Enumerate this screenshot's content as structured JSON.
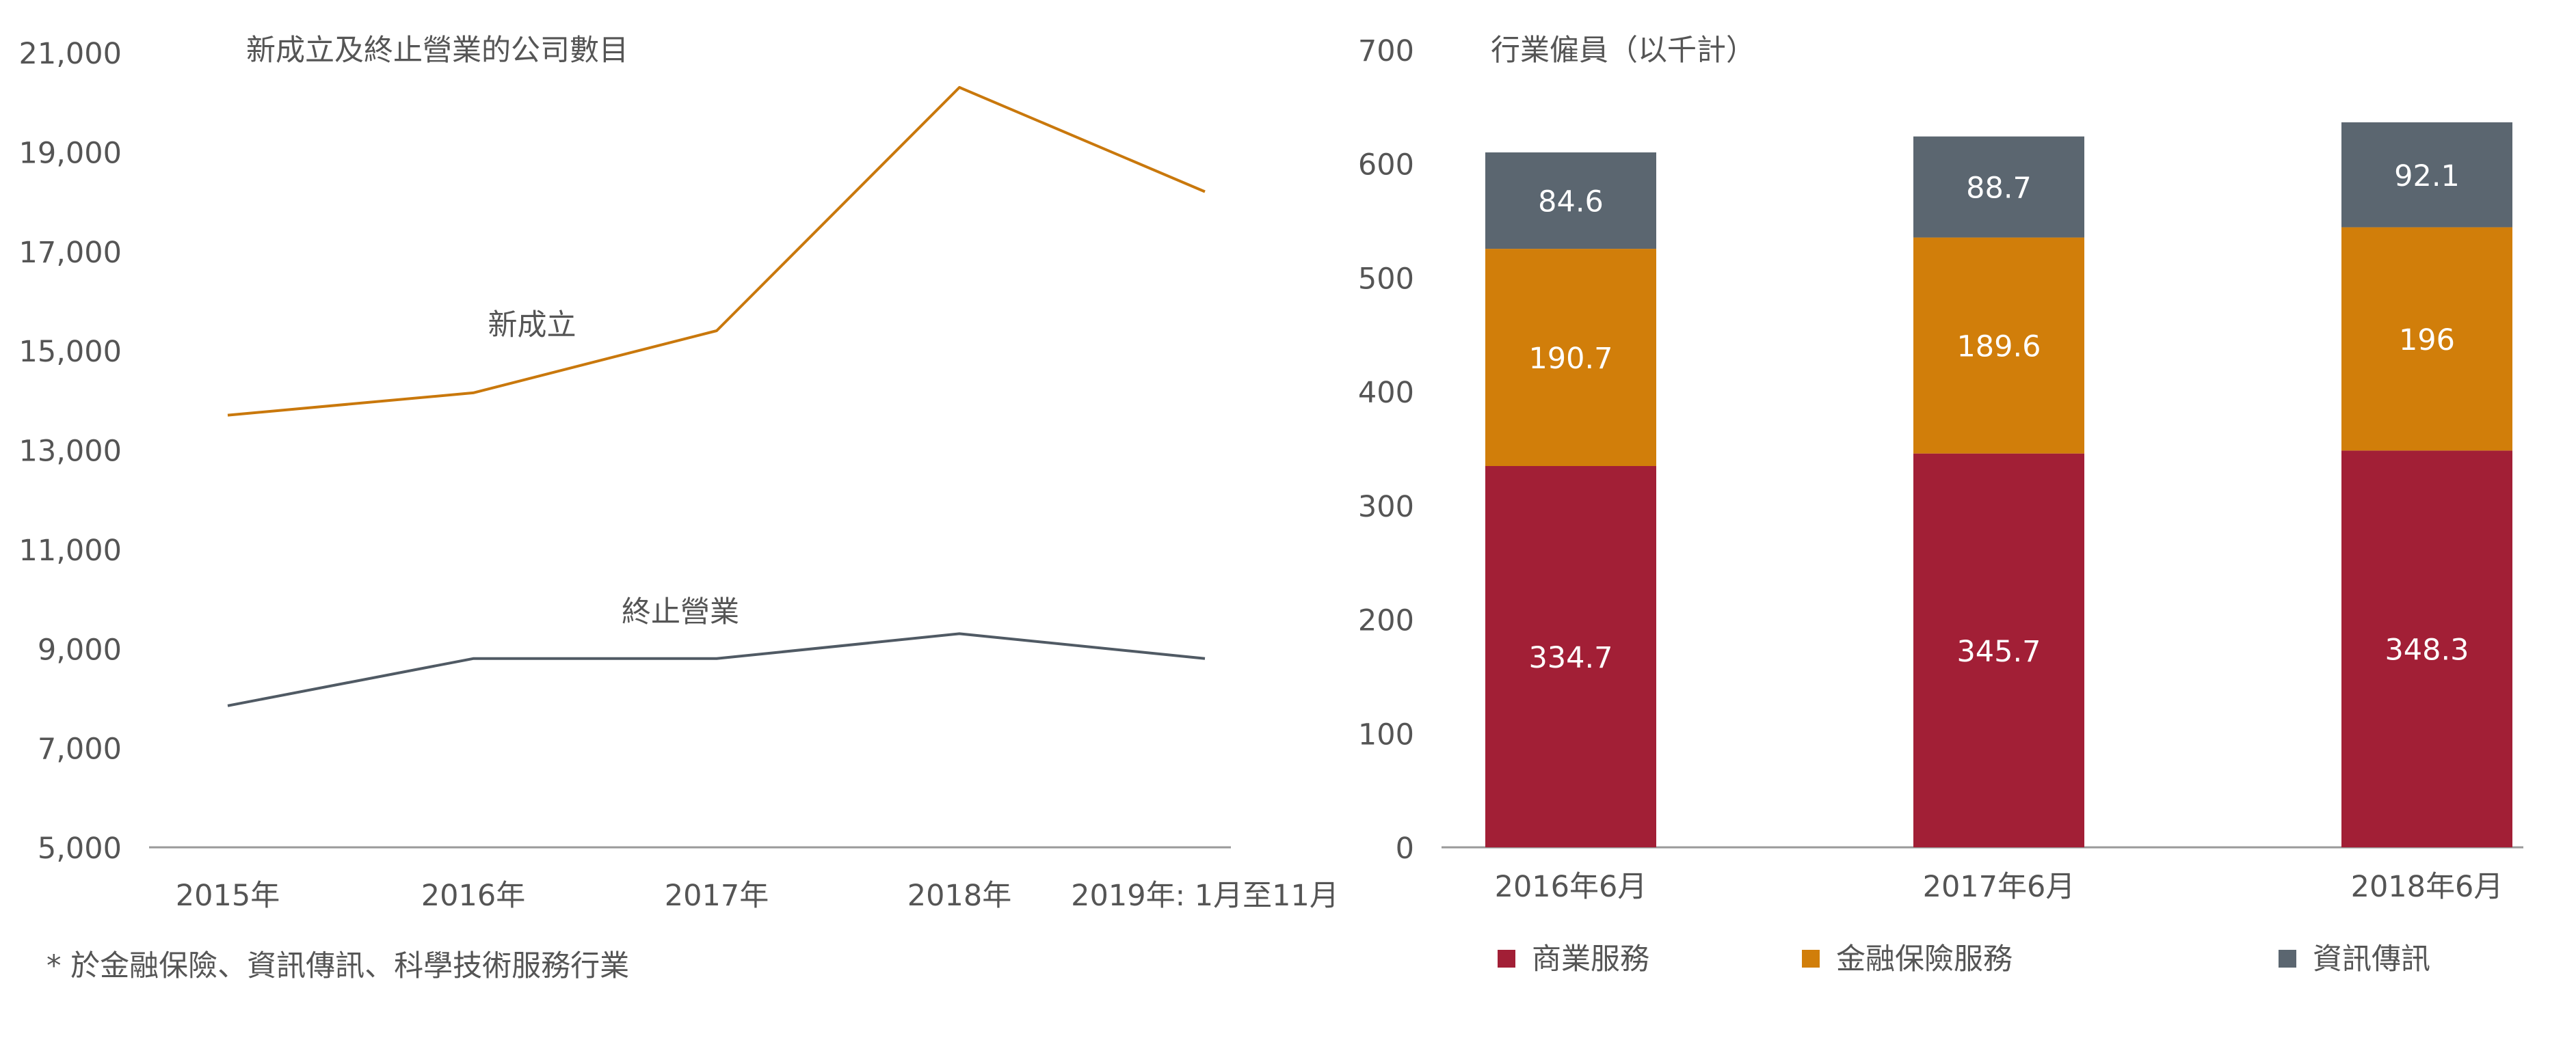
{
  "chart_data": [
    {
      "type": "line",
      "title": "新成立及終止營業的公司數目",
      "categories": [
        "2015年",
        "2016年",
        "2017年",
        "2018年",
        "2019年: 1月至11月"
      ],
      "ylim": [
        5000,
        21000
      ],
      "yticks": [
        "21,000",
        "19,000",
        "17,000",
        "15,000",
        "13,000",
        "11,000",
        "9,000",
        "7,000",
        "5,000"
      ],
      "ytick_values": [
        21000,
        19000,
        17000,
        15000,
        13000,
        11000,
        9000,
        7000,
        5000
      ],
      "grid": false,
      "series": [
        {
          "name": "新成立",
          "color": "#C9780C",
          "values": [
            13700,
            14150,
            15400,
            20300,
            18200
          ]
        },
        {
          "name": "終止營業",
          "color": "#505A64",
          "values": [
            7850,
            8800,
            8800,
            9300,
            8800
          ]
        }
      ],
      "footnote": "* 於金融保險、資訊傳訊、科學技術服務行業"
    },
    {
      "type": "bar",
      "stacked": true,
      "title": "行業僱員（以千計）",
      "categories": [
        "2016年6月",
        "2017年6月",
        "2018年6月"
      ],
      "ylim": [
        0,
        700
      ],
      "yticks": [
        "700",
        "600",
        "500",
        "400",
        "300",
        "200",
        "100",
        "0"
      ],
      "ytick_values": [
        700,
        600,
        500,
        400,
        300,
        200,
        100,
        0
      ],
      "grid": false,
      "legend_position": "bottom",
      "series": [
        {
          "name": "商業服務",
          "color": "#A21F36",
          "values": [
            334.7,
            345.7,
            348.3
          ],
          "labels": [
            "334.7",
            "345.7",
            "348.3"
          ]
        },
        {
          "name": "金融保險服務",
          "color": "#D17E0A",
          "values": [
            190.7,
            189.6,
            196
          ],
          "labels": [
            "190.7",
            "189.6",
            "196"
          ]
        },
        {
          "name": "資訊傳訊",
          "color": "#5B6670",
          "values": [
            84.6,
            88.7,
            92.1
          ],
          "labels": [
            "84.6",
            "88.7",
            "92.1"
          ]
        }
      ]
    }
  ]
}
